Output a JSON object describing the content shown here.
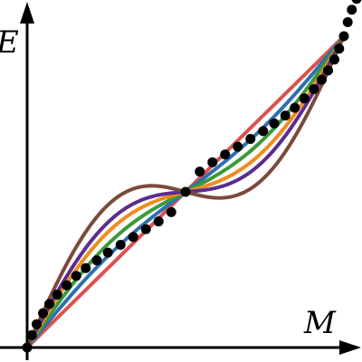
{
  "chart_data": {
    "type": "line",
    "title": "",
    "xlabel": "M",
    "ylabel": "E",
    "xlim": [
      0,
      1
    ],
    "ylim": [
      0,
      1
    ],
    "grid": false,
    "legend": "none",
    "series": [
      {
        "color": "#d9534f",
        "curvature": 0.0
      },
      {
        "color": "#2f6fb0",
        "curvature": 0.11
      },
      {
        "color": "#3a9a3a",
        "curvature": 0.22
      },
      {
        "color": "#f08c1e",
        "curvature": 0.33
      },
      {
        "color": "#5b2d8e",
        "curvature": 0.42
      },
      {
        "color": "#7a4a3a",
        "curvature": 0.58
      }
    ],
    "dotted_series": {
      "color": "#000000",
      "points": [
        [
          0.0,
          0.0
        ],
        [
          0.015,
          0.04
        ],
        [
          0.03,
          0.075
        ],
        [
          0.05,
          0.11
        ],
        [
          0.07,
          0.14
        ],
        [
          0.095,
          0.17
        ],
        [
          0.125,
          0.2
        ],
        [
          0.155,
          0.23
        ],
        [
          0.185,
          0.255
        ],
        [
          0.22,
          0.28
        ],
        [
          0.255,
          0.305
        ],
        [
          0.295,
          0.33
        ],
        [
          0.335,
          0.355
        ],
        [
          0.375,
          0.38
        ],
        [
          0.415,
          0.405
        ],
        [
          0.455,
          0.435
        ],
        [
          0.5,
          0.5
        ],
        [
          0.545,
          0.565
        ],
        [
          0.585,
          0.595
        ],
        [
          0.625,
          0.62
        ],
        [
          0.665,
          0.645
        ],
        [
          0.705,
          0.67
        ],
        [
          0.745,
          0.695
        ],
        [
          0.78,
          0.72
        ],
        [
          0.815,
          0.745
        ],
        [
          0.845,
          0.77
        ],
        [
          0.875,
          0.8
        ],
        [
          0.905,
          0.83
        ],
        [
          0.93,
          0.86
        ],
        [
          0.95,
          0.89
        ],
        [
          0.97,
          0.925
        ],
        [
          0.985,
          0.96
        ],
        [
          1.0,
          1.0
        ],
        [
          1.012,
          1.045
        ],
        [
          1.025,
          1.085
        ],
        [
          1.04,
          1.12
        ]
      ]
    }
  }
}
